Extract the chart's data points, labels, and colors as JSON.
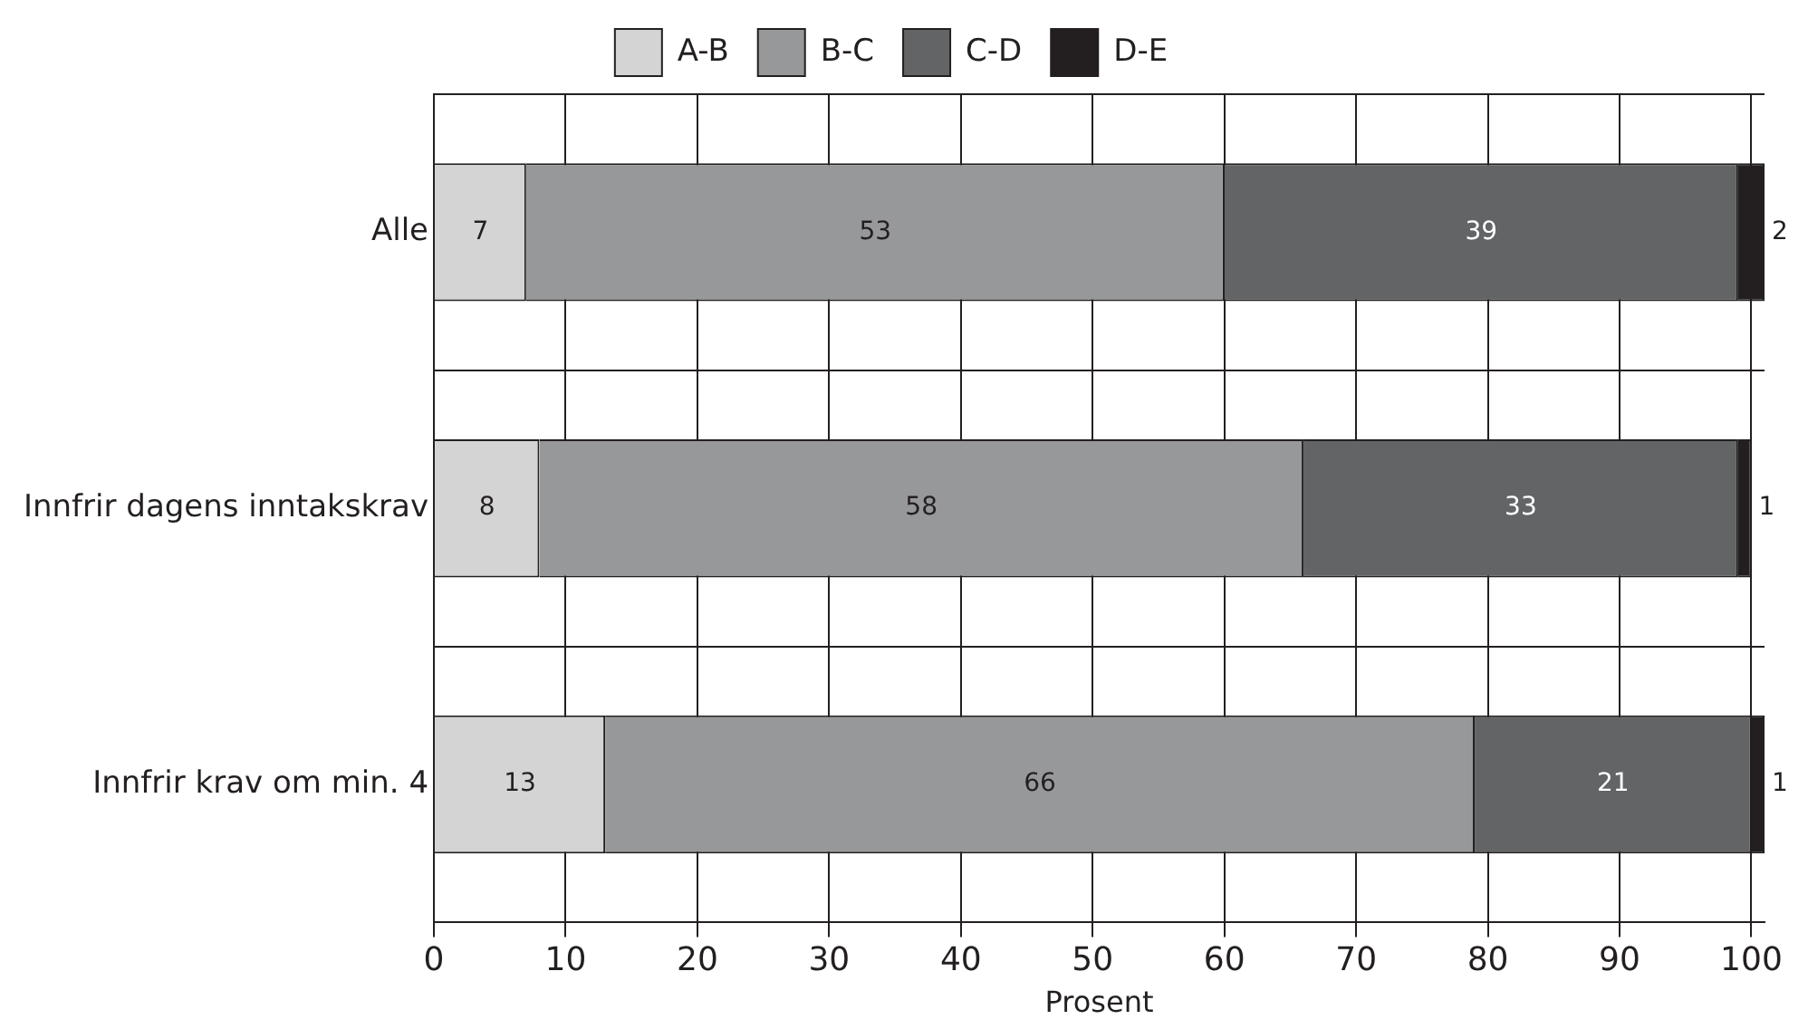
{
  "chart_data": {
    "type": "bar",
    "orientation": "horizontal",
    "stacked": true,
    "xlabel": "Prosent",
    "categories": [
      "Alle",
      "Innfrir dagens inntakskrav",
      "Innfrir krav om min. 4"
    ],
    "series": [
      {
        "name": "A-B",
        "color": "#d4d4d4",
        "values": [
          7,
          8,
          13
        ]
      },
      {
        "name": "B-C",
        "color": "#97989a",
        "values": [
          53,
          58,
          66
        ]
      },
      {
        "name": "C-D",
        "color": "#636466",
        "values": [
          39,
          33,
          21
        ]
      },
      {
        "name": "D-E",
        "color": "#231f20",
        "values": [
          2,
          1,
          1
        ]
      }
    ],
    "xlim": [
      0,
      101
    ],
    "xticks": [
      0,
      10,
      20,
      30,
      40,
      50,
      60,
      70,
      80,
      90,
      100
    ],
    "grid": true,
    "legend": "top",
    "data_labels": true
  }
}
